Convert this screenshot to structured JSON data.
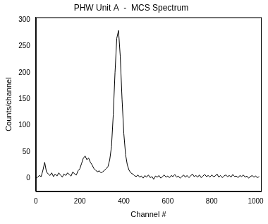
{
  "chart_data": {
    "type": "line",
    "title": "PHW Unit A  -  MCS Spectrum",
    "x_label": "Channel #",
    "y_label": "Counts/channel",
    "color": "#000000",
    "x": [
      0,
      8,
      16,
      24,
      32,
      40,
      48,
      56,
      64,
      72,
      80,
      88,
      96,
      104,
      112,
      120,
      128,
      136,
      144,
      152,
      160,
      168,
      176,
      184,
      192,
      200,
      208,
      216,
      224,
      232,
      240,
      248,
      256,
      264,
      272,
      280,
      288,
      296,
      304,
      312,
      320,
      328,
      336,
      344,
      352,
      360,
      368,
      376,
      384,
      392,
      400,
      408,
      416,
      424,
      432,
      440,
      448,
      456,
      464,
      472,
      480,
      488,
      496,
      504,
      512,
      520,
      528,
      536,
      544,
      552,
      560,
      568,
      576,
      584,
      592,
      600,
      608,
      616,
      624,
      632,
      640,
      648,
      656,
      664,
      672,
      680,
      688,
      696,
      704,
      712,
      720,
      728,
      736,
      744,
      752,
      760,
      768,
      776,
      784,
      792,
      800,
      808,
      816,
      824,
      832,
      840,
      848,
      856,
      864,
      872,
      880,
      888,
      896,
      904,
      912,
      920,
      928,
      936,
      944,
      952,
      960,
      968,
      976,
      984,
      992,
      1000,
      1008,
      1016
    ],
    "values": [
      0,
      2,
      5,
      3,
      15,
      30,
      12,
      8,
      5,
      10,
      3,
      8,
      4,
      10,
      6,
      2,
      8,
      5,
      10,
      7,
      4,
      12,
      8,
      6,
      14,
      18,
      28,
      38,
      42,
      35,
      38,
      30,
      25,
      18,
      15,
      12,
      14,
      10,
      12,
      15,
      18,
      22,
      35,
      60,
      120,
      200,
      265,
      280,
      230,
      150,
      85,
      45,
      25,
      15,
      10,
      8,
      5,
      3,
      6,
      2,
      4,
      0,
      5,
      2,
      6,
      1,
      3,
      -2,
      4,
      2,
      5,
      0,
      3,
      6,
      2,
      4,
      1,
      5,
      3,
      7,
      2,
      4,
      0,
      3,
      6,
      2,
      5,
      1,
      4,
      8,
      3,
      5,
      2,
      6,
      1,
      4,
      7,
      3,
      5,
      2,
      6,
      3,
      4,
      8,
      2,
      5,
      1,
      4,
      6,
      3,
      5,
      2,
      7,
      3,
      4,
      1,
      5,
      3,
      6,
      2,
      4,
      0,
      3,
      5,
      2,
      4,
      1,
      3
    ],
    "xlim": [
      0,
      1024
    ],
    "ylim": [
      -25,
      305
    ],
    "xticks": [
      0,
      200,
      400,
      600,
      800,
      1000
    ],
    "yticks": [
      0,
      50,
      100,
      150,
      200,
      250,
      300
    ],
    "grid": false
  }
}
